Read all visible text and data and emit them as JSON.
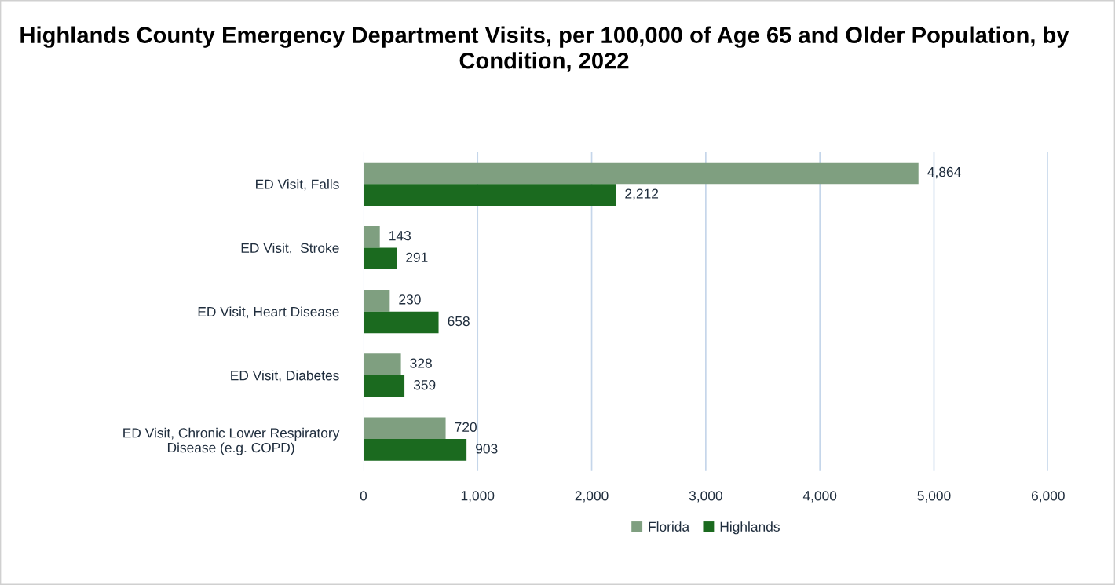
{
  "chart_data": {
    "type": "bar",
    "orientation": "horizontal",
    "title": "Highlands County Emergency Department Visits, per 100,000 of Age 65 and Older Population, by Condition, 2022",
    "categories": [
      "ED Visit, Falls",
      "ED Visit,  Stroke",
      "ED Visit, Heart Disease",
      "ED Visit, Diabetes",
      "ED Visit, Chronic Lower Respiratory\nDisease (e.g. COPD)"
    ],
    "series": [
      {
        "name": "Florida",
        "color": "#7f9f80",
        "values": [
          4864,
          143,
          230,
          328,
          720
        ],
        "value_labels": [
          "4,864",
          "143",
          "230",
          "328",
          "720"
        ]
      },
      {
        "name": "Highlands",
        "color": "#1b6a1f",
        "values": [
          2212,
          291,
          658,
          359,
          903
        ],
        "value_labels": [
          "2,212",
          "291",
          "658",
          "359",
          "903"
        ]
      }
    ],
    "xlim": [
      0,
      6000
    ],
    "xticks": [
      0,
      {
        "value": 1000,
        "label": "1,000"
      },
      {
        "value": 2000,
        "label": "2,000"
      },
      {
        "value": 3000,
        "label": "3,000"
      },
      {
        "value": 4000,
        "label": "4,000"
      },
      {
        "value": 5000,
        "label": "5,000"
      },
      {
        "value": 6000,
        "label": "6,000"
      }
    ],
    "grid": "x",
    "legend": "bottom"
  }
}
